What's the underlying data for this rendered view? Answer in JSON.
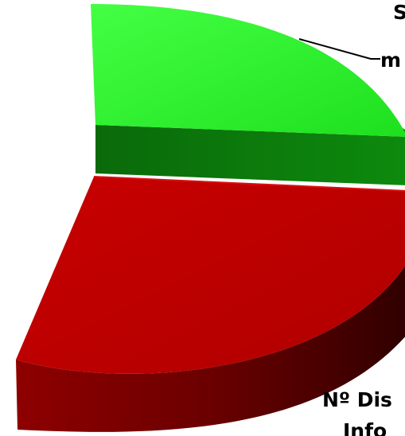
{
  "chart_data": {
    "type": "pie",
    "style": "3d-exploded",
    "title": "",
    "legend": "none",
    "slices": [
      {
        "label_lines": [
          "S",
          "m"
        ],
        "value": 0.25,
        "color": "#33ff33",
        "side_color": "#0b7a0b"
      },
      {
        "label_lines": [
          "Nº Dis",
          "Info"
        ],
        "value": 0.28,
        "color": "#c00000",
        "side_color": "#5a0000"
      }
    ]
  }
}
